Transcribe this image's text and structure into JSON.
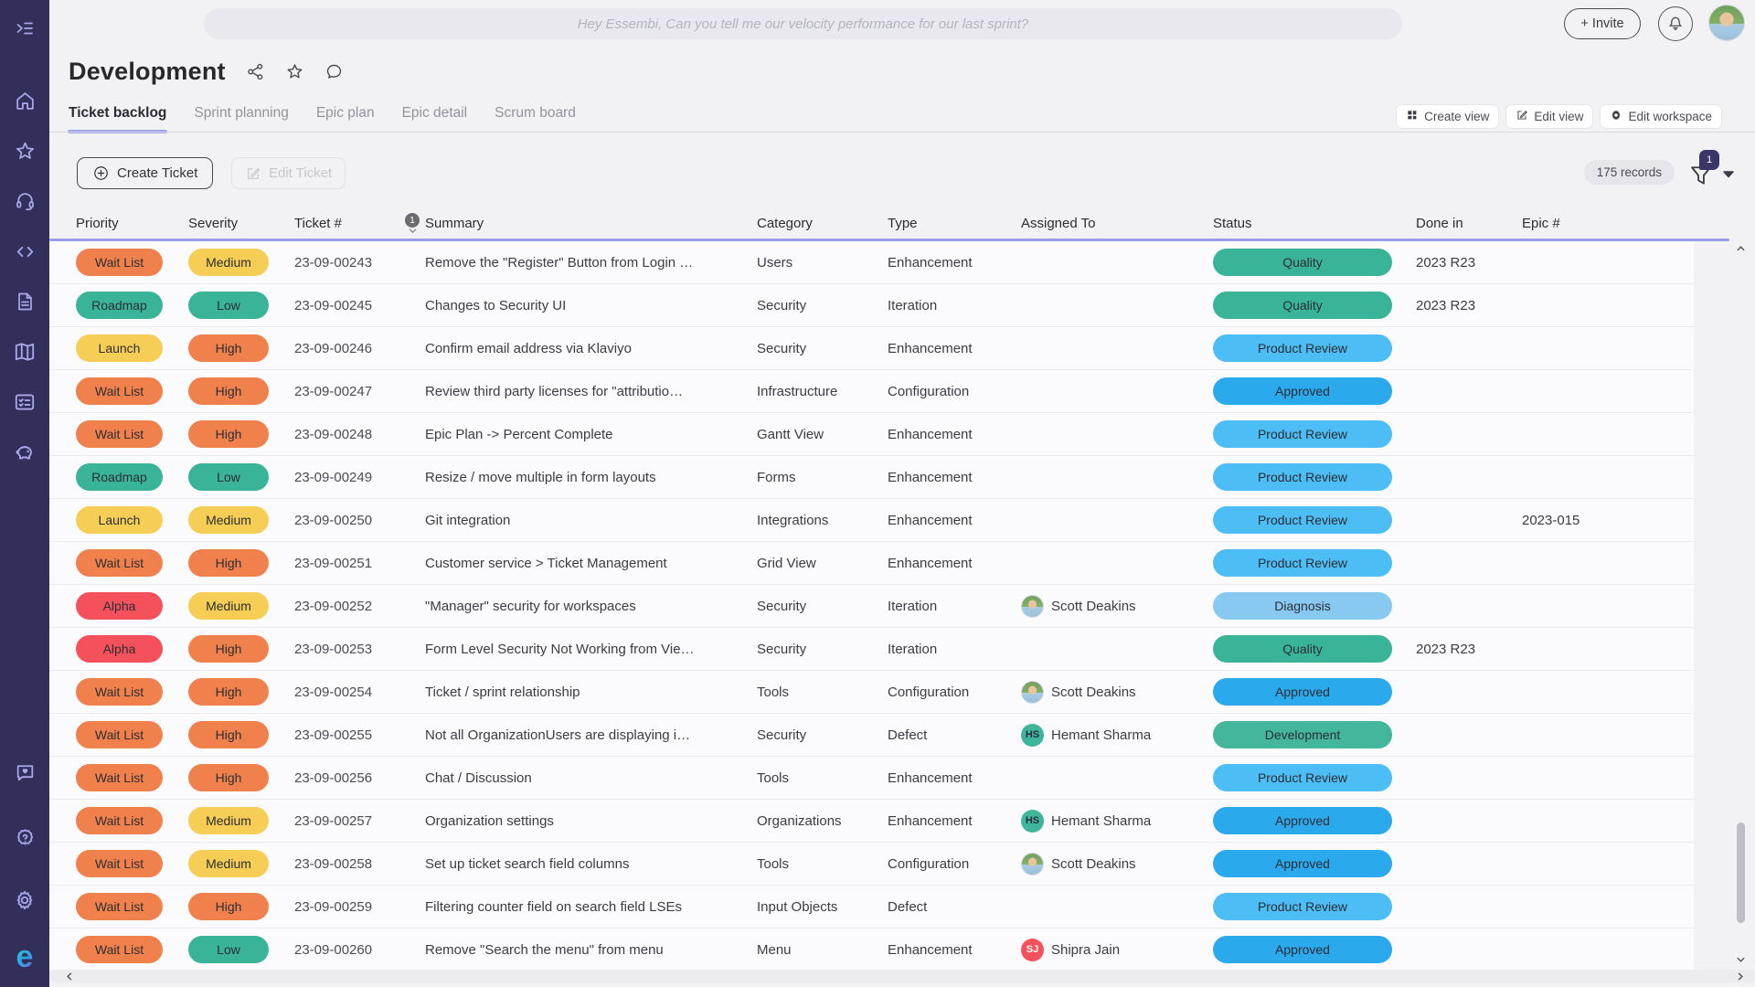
{
  "topbar": {
    "search_placeholder": "Hey Essembi, Can you tell me our velocity performance for our last sprint?",
    "invite_label": "+ Invite"
  },
  "header": {
    "title": "Development",
    "tabs": [
      {
        "label": "Ticket backlog",
        "active": true
      },
      {
        "label": "Sprint planning",
        "active": false
      },
      {
        "label": "Epic plan",
        "active": false
      },
      {
        "label": "Epic detail",
        "active": false
      },
      {
        "label": "Scrum board",
        "active": false
      }
    ],
    "view_buttons": [
      {
        "label": "Create view",
        "icon": "grid-icon"
      },
      {
        "label": "Edit view",
        "icon": "edit-icon"
      },
      {
        "label": "Edit workspace",
        "icon": "gear-icon"
      }
    ]
  },
  "toolbar": {
    "create_ticket_label": "Create Ticket",
    "edit_ticket_label": "Edit Ticket",
    "records_label": "175 records",
    "filter_badge": "1"
  },
  "table": {
    "columns": [
      "Priority",
      "Severity",
      "Ticket #",
      "Summary",
      "Category",
      "Type",
      "Assigned To",
      "Status",
      "Done in",
      "Epic #"
    ],
    "sort": {
      "column_index": 2,
      "order": "1",
      "direction": "asc"
    },
    "rows": [
      {
        "priority": {
          "label": "Wait List",
          "color": "orange"
        },
        "severity": {
          "label": "Medium",
          "color": "yellow"
        },
        "ticket": "23-09-00243",
        "summary": "Remove the \"Register\" Button from Login …",
        "category": "Users",
        "type": "Enhancement",
        "assignee": null,
        "status": {
          "label": "Quality",
          "color": "teal"
        },
        "done_in": "2023 R23",
        "epic": ""
      },
      {
        "priority": {
          "label": "Roadmap",
          "color": "teal"
        },
        "severity": {
          "label": "Low",
          "color": "teal"
        },
        "ticket": "23-09-00245",
        "summary": "Changes to Security UI",
        "category": "Security",
        "type": "Iteration",
        "assignee": null,
        "status": {
          "label": "Quality",
          "color": "teal"
        },
        "done_in": "2023 R23",
        "epic": ""
      },
      {
        "priority": {
          "label": "Launch",
          "color": "yellow"
        },
        "severity": {
          "label": "High",
          "color": "orange"
        },
        "ticket": "23-09-00246",
        "summary": "Confirm email address via Klaviyo",
        "category": "Security",
        "type": "Enhancement",
        "assignee": null,
        "status": {
          "label": "Product Review",
          "color": "sky"
        },
        "done_in": "",
        "epic": ""
      },
      {
        "priority": {
          "label": "Wait List",
          "color": "orange"
        },
        "severity": {
          "label": "High",
          "color": "orange"
        },
        "ticket": "23-09-00247",
        "summary": "Review third party licenses for \"attributio…",
        "category": "Infrastructure",
        "type": "Configuration",
        "assignee": null,
        "status": {
          "label": "Approved",
          "color": "blue"
        },
        "done_in": "",
        "epic": ""
      },
      {
        "priority": {
          "label": "Wait List",
          "color": "orange"
        },
        "severity": {
          "label": "High",
          "color": "orange"
        },
        "ticket": "23-09-00248",
        "summary": "Epic Plan -> Percent Complete",
        "category": "Gantt View",
        "type": "Enhancement",
        "assignee": null,
        "status": {
          "label": "Product Review",
          "color": "sky"
        },
        "done_in": "",
        "epic": ""
      },
      {
        "priority": {
          "label": "Roadmap",
          "color": "teal"
        },
        "severity": {
          "label": "Low",
          "color": "teal"
        },
        "ticket": "23-09-00249",
        "summary": "Resize / move multiple in form layouts",
        "category": "Forms",
        "type": "Enhancement",
        "assignee": null,
        "status": {
          "label": "Product Review",
          "color": "sky"
        },
        "done_in": "",
        "epic": ""
      },
      {
        "priority": {
          "label": "Launch",
          "color": "yellow"
        },
        "severity": {
          "label": "Medium",
          "color": "yellow"
        },
        "ticket": "23-09-00250",
        "summary": "Git integration",
        "category": "Integrations",
        "type": "Enhancement",
        "assignee": null,
        "status": {
          "label": "Product Review",
          "color": "sky"
        },
        "done_in": "",
        "epic": "2023-015"
      },
      {
        "priority": {
          "label": "Wait List",
          "color": "orange"
        },
        "severity": {
          "label": "High",
          "color": "orange"
        },
        "ticket": "23-09-00251",
        "summary": "Customer service > Ticket Management",
        "category": "Grid View",
        "type": "Enhancement",
        "assignee": null,
        "status": {
          "label": "Product Review",
          "color": "sky"
        },
        "done_in": "",
        "epic": ""
      },
      {
        "priority": {
          "label": "Alpha",
          "color": "red"
        },
        "severity": {
          "label": "Medium",
          "color": "yellow"
        },
        "ticket": "23-09-00252",
        "summary": "\"Manager\" security for workspaces",
        "category": "Security",
        "type": "Iteration",
        "assignee": {
          "name": "Scott Deakins",
          "avatar": "photo",
          "initials": "SD",
          "bg": "",
          "fg": ""
        },
        "status": {
          "label": "Diagnosis",
          "color": "lightblue"
        },
        "done_in": "",
        "epic": ""
      },
      {
        "priority": {
          "label": "Alpha",
          "color": "red"
        },
        "severity": {
          "label": "High",
          "color": "orange"
        },
        "ticket": "23-09-00253",
        "summary": "Form Level Security Not Working from Vie…",
        "category": "Security",
        "type": "Iteration",
        "assignee": null,
        "status": {
          "label": "Quality",
          "color": "teal"
        },
        "done_in": "2023 R23",
        "epic": ""
      },
      {
        "priority": {
          "label": "Wait List",
          "color": "orange"
        },
        "severity": {
          "label": "High",
          "color": "orange"
        },
        "ticket": "23-09-00254",
        "summary": "Ticket / sprint relationship",
        "category": "Tools",
        "type": "Configuration",
        "assignee": {
          "name": "Scott Deakins",
          "avatar": "photo",
          "initials": "SD",
          "bg": "",
          "fg": ""
        },
        "status": {
          "label": "Approved",
          "color": "blue"
        },
        "done_in": "",
        "epic": ""
      },
      {
        "priority": {
          "label": "Wait List",
          "color": "orange"
        },
        "severity": {
          "label": "High",
          "color": "orange"
        },
        "ticket": "23-09-00255",
        "summary": "Not all OrganizationUsers are displaying i…",
        "category": "Security",
        "type": "Defect",
        "assignee": {
          "name": "Hemant Sharma",
          "avatar": "initials",
          "initials": "HS",
          "bg": "#3FB59B",
          "fg": "#2b2b40"
        },
        "status": {
          "label": "Development",
          "color": "green"
        },
        "done_in": "",
        "epic": ""
      },
      {
        "priority": {
          "label": "Wait List",
          "color": "orange"
        },
        "severity": {
          "label": "High",
          "color": "orange"
        },
        "ticket": "23-09-00256",
        "summary": "Chat / Discussion",
        "category": "Tools",
        "type": "Enhancement",
        "assignee": null,
        "status": {
          "label": "Product Review",
          "color": "sky"
        },
        "done_in": "",
        "epic": ""
      },
      {
        "priority": {
          "label": "Wait List",
          "color": "orange"
        },
        "severity": {
          "label": "Medium",
          "color": "yellow"
        },
        "ticket": "23-09-00257",
        "summary": "Organization settings",
        "category": "Organizations",
        "type": "Enhancement",
        "assignee": {
          "name": "Hemant Sharma",
          "avatar": "initials",
          "initials": "HS",
          "bg": "#3FB59B",
          "fg": "#2b2b40"
        },
        "status": {
          "label": "Approved",
          "color": "blue"
        },
        "done_in": "",
        "epic": ""
      },
      {
        "priority": {
          "label": "Wait List",
          "color": "orange"
        },
        "severity": {
          "label": "Medium",
          "color": "yellow"
        },
        "ticket": "23-09-00258",
        "summary": "Set up ticket search field columns",
        "category": "Tools",
        "type": "Configuration",
        "assignee": {
          "name": "Scott Deakins",
          "avatar": "photo",
          "initials": "SD",
          "bg": "",
          "fg": ""
        },
        "status": {
          "label": "Approved",
          "color": "blue"
        },
        "done_in": "",
        "epic": ""
      },
      {
        "priority": {
          "label": "Wait List",
          "color": "orange"
        },
        "severity": {
          "label": "High",
          "color": "orange"
        },
        "ticket": "23-09-00259",
        "summary": "Filtering counter field on search field LSEs",
        "category": "Input Objects",
        "type": "Defect",
        "assignee": null,
        "status": {
          "label": "Product Review",
          "color": "sky"
        },
        "done_in": "",
        "epic": ""
      },
      {
        "priority": {
          "label": "Wait List",
          "color": "orange"
        },
        "severity": {
          "label": "Low",
          "color": "teal"
        },
        "ticket": "23-09-00260",
        "summary": "Remove \"Search the menu\" from menu",
        "category": "Menu",
        "type": "Enhancement",
        "assignee": {
          "name": "Shipra Jain",
          "avatar": "initials",
          "initials": "SJ",
          "bg": "#F4515C",
          "fg": "#ffffff"
        },
        "status": {
          "label": "Approved",
          "color": "blue"
        },
        "done_in": "",
        "epic": ""
      }
    ]
  },
  "colors": {
    "palette": {
      "orange": "#F0814C",
      "yellow": "#F6CE55",
      "teal": "#3AB499",
      "red": "#F4515C",
      "sky": "#4DBDF5",
      "blue": "#2AA9EC",
      "lightblue": "#87C9F0",
      "green": "#43B69B"
    },
    "sidebar_bg": "#322F5B",
    "accent_underline": "#A2A2EC",
    "header_rule": "#9B9CE6",
    "filter_badge_bg": "#3A3768"
  },
  "sidebar": {
    "items": [
      "collapse-menu",
      "home",
      "favorites",
      "support",
      "code",
      "documents",
      "map",
      "checklist",
      "piggy-bank",
      "feedback",
      "help",
      "settings",
      "essembi-logo"
    ]
  }
}
